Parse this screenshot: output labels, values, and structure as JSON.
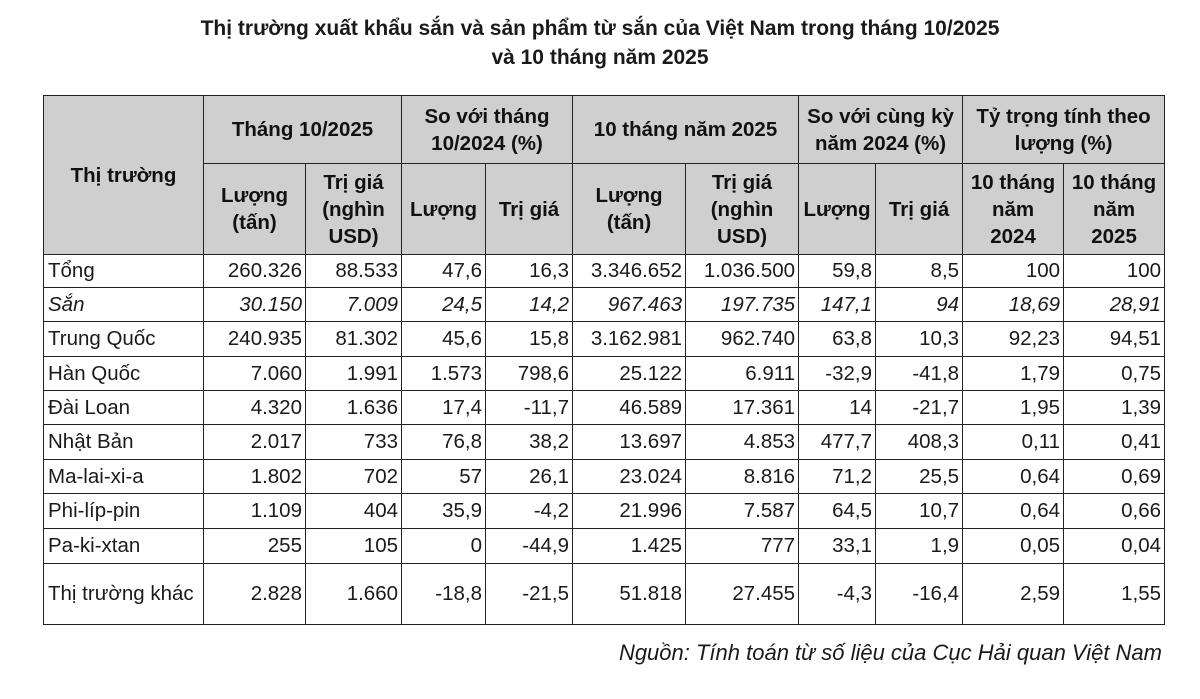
{
  "title": {
    "line1": "Thị trường xuất khẩu sắn và sản phẩm từ sắn của Việt Nam trong tháng 10/2025",
    "line2": "và 10 tháng năm 2025"
  },
  "header": {
    "market": "Thị trường",
    "g1": "Tháng 10/2025",
    "g2": "So với tháng 10/2024 (%)",
    "g3": "10 tháng năm 2025",
    "g4": "So với cùng kỳ năm 2024 (%)",
    "g5": "Tỷ trọng tính theo lượng (%)",
    "qty_ton": "Lượng (tấn)",
    "val_usd": "Trị giá (nghìn USD)",
    "qty": "Lượng",
    "val": "Trị giá",
    "y2024": "10 tháng năm 2024",
    "y2025": "10 tháng năm 2025"
  },
  "rows": [
    {
      "name": "Tổng",
      "c": [
        "260.326",
        "88.533",
        "47,6",
        "16,3",
        "3.346.652",
        "1.036.500",
        "59,8",
        "8,5",
        "100",
        "100"
      ]
    },
    {
      "name": "Sắn",
      "c": [
        "30.150",
        "7.009",
        "24,5",
        "14,2",
        "967.463",
        "197.735",
        "147,1",
        "94",
        "18,69",
        "28,91"
      ]
    },
    {
      "name": "Trung Quốc",
      "c": [
        "240.935",
        "81.302",
        "45,6",
        "15,8",
        "3.162.981",
        "962.740",
        "63,8",
        "10,3",
        "92,23",
        "94,51"
      ]
    },
    {
      "name": "Hàn Quốc",
      "c": [
        "7.060",
        "1.991",
        "1.573",
        "798,6",
        "25.122",
        "6.911",
        "-32,9",
        "-41,8",
        "1,79",
        "0,75"
      ]
    },
    {
      "name": "Đài Loan",
      "c": [
        "4.320",
        "1.636",
        "17,4",
        "-11,7",
        "46.589",
        "17.361",
        "14",
        "-21,7",
        "1,95",
        "1,39"
      ]
    },
    {
      "name": "Nhật Bản",
      "c": [
        "2.017",
        "733",
        "76,8",
        "38,2",
        "13.697",
        "4.853",
        "477,7",
        "408,3",
        "0,11",
        "0,41"
      ]
    },
    {
      "name": "Ma-lai-xi-a",
      "c": [
        "1.802",
        "702",
        "57",
        "26,1",
        "23.024",
        "8.816",
        "71,2",
        "25,5",
        "0,64",
        "0,69"
      ]
    },
    {
      "name": "Phi-líp-pin",
      "c": [
        "1.109",
        "404",
        "35,9",
        "-4,2",
        "21.996",
        "7.587",
        "64,5",
        "10,7",
        "0,64",
        "0,66"
      ]
    },
    {
      "name": "Pa-ki-xtan",
      "c": [
        "255",
        "105",
        "0",
        "-44,9",
        "1.425",
        "777",
        "33,1",
        "1,9",
        "0,05",
        "0,04"
      ]
    },
    {
      "name": "Thị trường khác",
      "c": [
        "2.828",
        "1.660",
        "-18,8",
        "-21,5",
        "51.818",
        "27.455",
        "-4,3",
        "-16,4",
        "2,59",
        "1,55"
      ]
    }
  ],
  "source": "Nguồn: Tính toán từ số liệu của Cục Hải quan Việt Nam"
}
